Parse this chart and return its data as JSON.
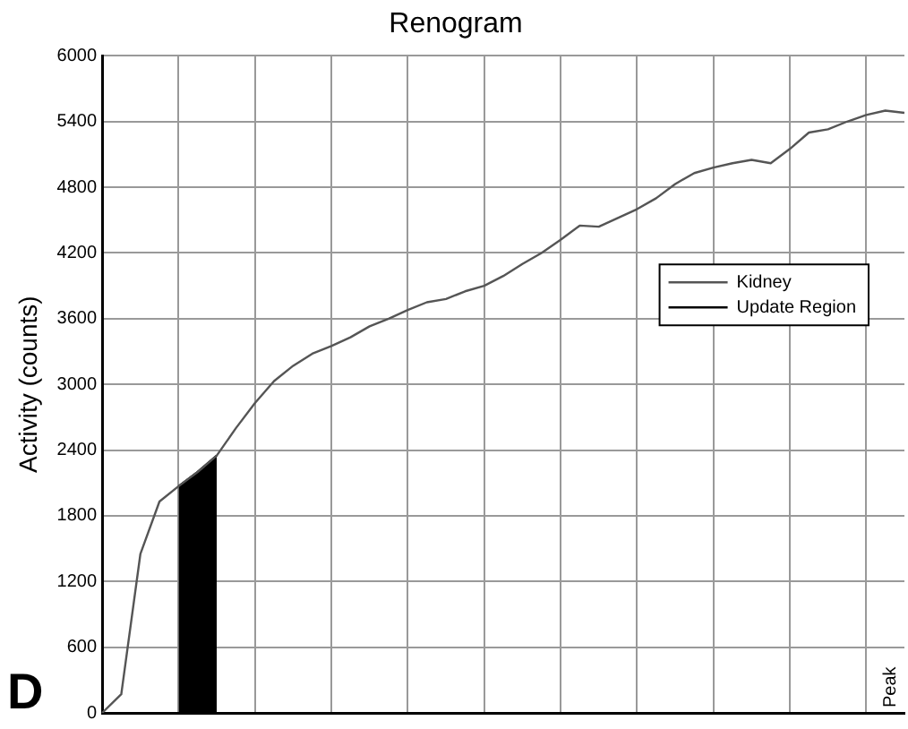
{
  "chart_data": {
    "type": "line",
    "title": "Renogram",
    "ylabel": "Activity (counts)",
    "annotations": [
      "D",
      "Peak"
    ],
    "categories": [
      null,
      null,
      null,
      null,
      null,
      null,
      null,
      null,
      null,
      null,
      null,
      null,
      null,
      null,
      null,
      null,
      null,
      null,
      null,
      null,
      null,
      null,
      null,
      null,
      null,
      null,
      null,
      null,
      null,
      null,
      null,
      null,
      null,
      null,
      null,
      null,
      null,
      null,
      null,
      null,
      null,
      null,
      null
    ],
    "series": [
      {
        "name": "Kidney",
        "color": "#555555",
        "values": [
          0,
          170,
          1450,
          1930,
          2070,
          2200,
          2350,
          2600,
          2830,
          3030,
          3170,
          3280,
          3350,
          3430,
          3530,
          3600,
          3680,
          3750,
          3780,
          3850,
          3900,
          3990,
          4100,
          4200,
          4320,
          4450,
          4440,
          4520,
          4600,
          4700,
          4830,
          4930,
          4980,
          5020,
          5050,
          5020,
          5150,
          5300,
          5330,
          5400,
          5460,
          5500,
          5480
        ]
      },
      {
        "name": "Update Region",
        "type": "area",
        "color": "#000000",
        "values": [
          null,
          null,
          null,
          null,
          2070,
          2200,
          2350,
          null,
          null,
          null,
          null,
          null,
          null,
          null,
          null,
          null,
          null,
          null,
          null,
          null,
          null,
          null,
          null,
          null,
          null,
          null,
          null,
          null,
          null,
          null,
          null,
          null,
          null,
          null,
          null,
          null,
          null,
          null,
          null,
          null,
          null,
          null,
          null
        ]
      }
    ],
    "ylim": [
      0,
      6000
    ],
    "yticks": [
      0,
      600,
      1200,
      1800,
      2400,
      3000,
      3600,
      4200,
      4800,
      5400,
      6000
    ],
    "grid": true,
    "legend": "right",
    "tick_labels": "y"
  }
}
